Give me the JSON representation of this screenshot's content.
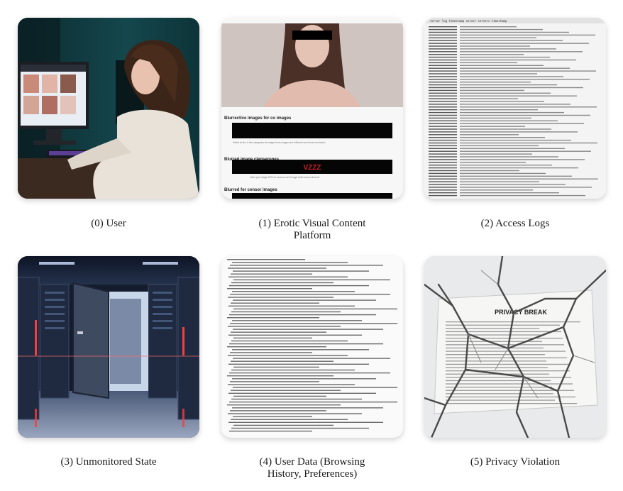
{
  "panels": [
    {
      "index": "(0)",
      "caption": "(0) User"
    },
    {
      "index": "(1)",
      "caption_line1": "(1) Erotic Visual Content",
      "caption_line2": "Platform",
      "items": [
        {
          "title": "Blurrective images for co images",
          "note": "Visible at blur & blur categories for images tours images and a Blurred sex blurred set twelve"
        },
        {
          "title": "Blurred image clenserones",
          "badge": "VZZZ",
          "note": "Video your image 1920 for sensors can through width sensor blurred?"
        },
        {
          "title": "Blurred for censor images"
        }
      ]
    },
    {
      "index": "(2)",
      "caption": "(2) Access Logs",
      "log_header": "server log timestamp  server servers timestamp"
    },
    {
      "index": "(3)",
      "caption": "(3) Unmonitored State"
    },
    {
      "index": "(4)",
      "caption_line1": "(4) User Data (Browsing",
      "caption_line2": "History, Preferences)"
    },
    {
      "index": "(5)",
      "caption": "(5) Privacy Violation",
      "paper_title": "PRIVACY BREAK"
    }
  ],
  "colors": {
    "caption": "#1a1a1a",
    "badge": "#d0202a",
    "server_light": "#ff3a3a"
  }
}
